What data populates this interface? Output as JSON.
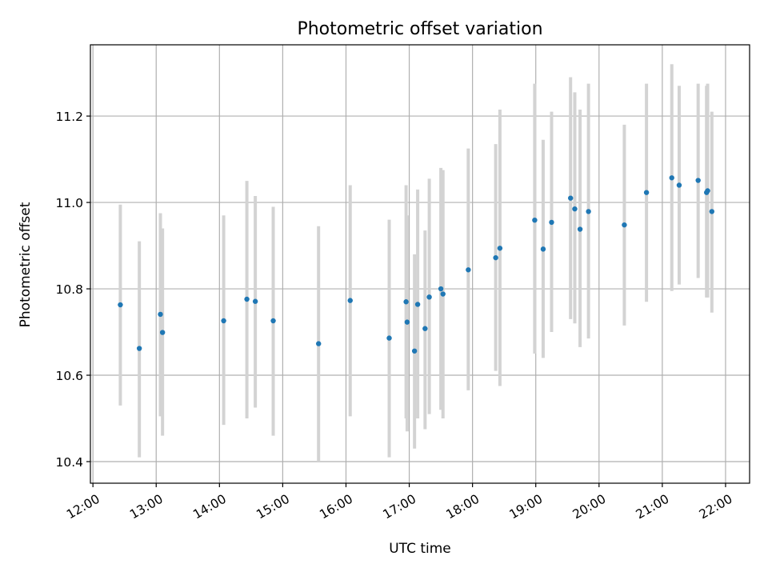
{
  "chart_data": {
    "type": "scatter",
    "title": "Photometric offset variation",
    "xlabel": "UTC time",
    "ylabel": "Photometric offset",
    "x_tick_labels": [
      "12:00",
      "13:00",
      "14:00",
      "15:00",
      "16:00",
      "17:00",
      "18:00",
      "19:00",
      "20:00",
      "21:00",
      "22:00"
    ],
    "x_tick_hours": [
      12,
      13,
      14,
      15,
      16,
      17,
      18,
      19,
      20,
      21,
      22
    ],
    "xlim_hours": [
      11.96,
      22.38
    ],
    "y_ticks": [
      10.4,
      10.6,
      10.8,
      11.0,
      11.2
    ],
    "y_tick_labels": [
      "10.4",
      "10.6",
      "10.8",
      "11.0",
      "11.2"
    ],
    "ylim": [
      10.35,
      11.365
    ],
    "grid": true,
    "colors": {
      "points": "#1f77b4",
      "errorbars": "#d3d3d3",
      "grid": "#b0b0b0",
      "axes": "#000000"
    },
    "series": [
      {
        "x": [
          "12:26",
          "12:44",
          "13:04",
          "13:06",
          "14:04",
          "14:26",
          "14:34",
          "14:51",
          "15:34",
          "16:04",
          "16:41",
          "16:57",
          "16:58",
          "17:05",
          "17:08",
          "17:15",
          "17:19",
          "17:30",
          "17:32",
          "17:56",
          "18:22",
          "18:26",
          "18:59",
          "19:07",
          "19:15",
          "19:33",
          "19:37",
          "19:42",
          "19:50",
          "20:24",
          "20:45",
          "21:09",
          "21:16",
          "21:34",
          "21:42",
          "21:43",
          "21:47"
        ],
        "y": [
          10.763,
          10.662,
          10.741,
          10.699,
          10.726,
          10.776,
          10.771,
          10.726,
          10.673,
          10.773,
          10.686,
          10.77,
          10.723,
          10.656,
          10.764,
          10.708,
          10.781,
          10.8,
          10.788,
          10.844,
          10.872,
          10.894,
          10.959,
          10.892,
          10.954,
          11.01,
          10.985,
          10.938,
          10.979,
          10.948,
          11.023,
          11.057,
          11.04,
          11.051,
          11.023,
          11.027,
          10.979
        ],
        "ylow": [
          10.53,
          10.41,
          10.505,
          10.46,
          10.485,
          10.5,
          10.525,
          10.46,
          10.4,
          10.505,
          10.41,
          10.5,
          10.47,
          10.43,
          10.5,
          10.475,
          10.51,
          10.52,
          10.5,
          10.565,
          10.61,
          10.575,
          10.65,
          10.64,
          10.7,
          10.73,
          10.72,
          10.665,
          10.685,
          10.715,
          10.77,
          10.795,
          10.81,
          10.825,
          10.78,
          10.78,
          10.745
        ],
        "yhigh": [
          10.995,
          10.91,
          10.975,
          10.94,
          10.97,
          11.05,
          11.015,
          10.99,
          10.945,
          11.04,
          10.96,
          11.04,
          10.97,
          10.88,
          11.03,
          10.935,
          11.055,
          11.08,
          11.075,
          11.125,
          11.135,
          11.215,
          11.275,
          11.145,
          11.21,
          11.29,
          11.255,
          11.215,
          11.275,
          11.18,
          11.275,
          11.32,
          11.27,
          11.275,
          11.27,
          11.275,
          11.21
        ]
      }
    ]
  }
}
